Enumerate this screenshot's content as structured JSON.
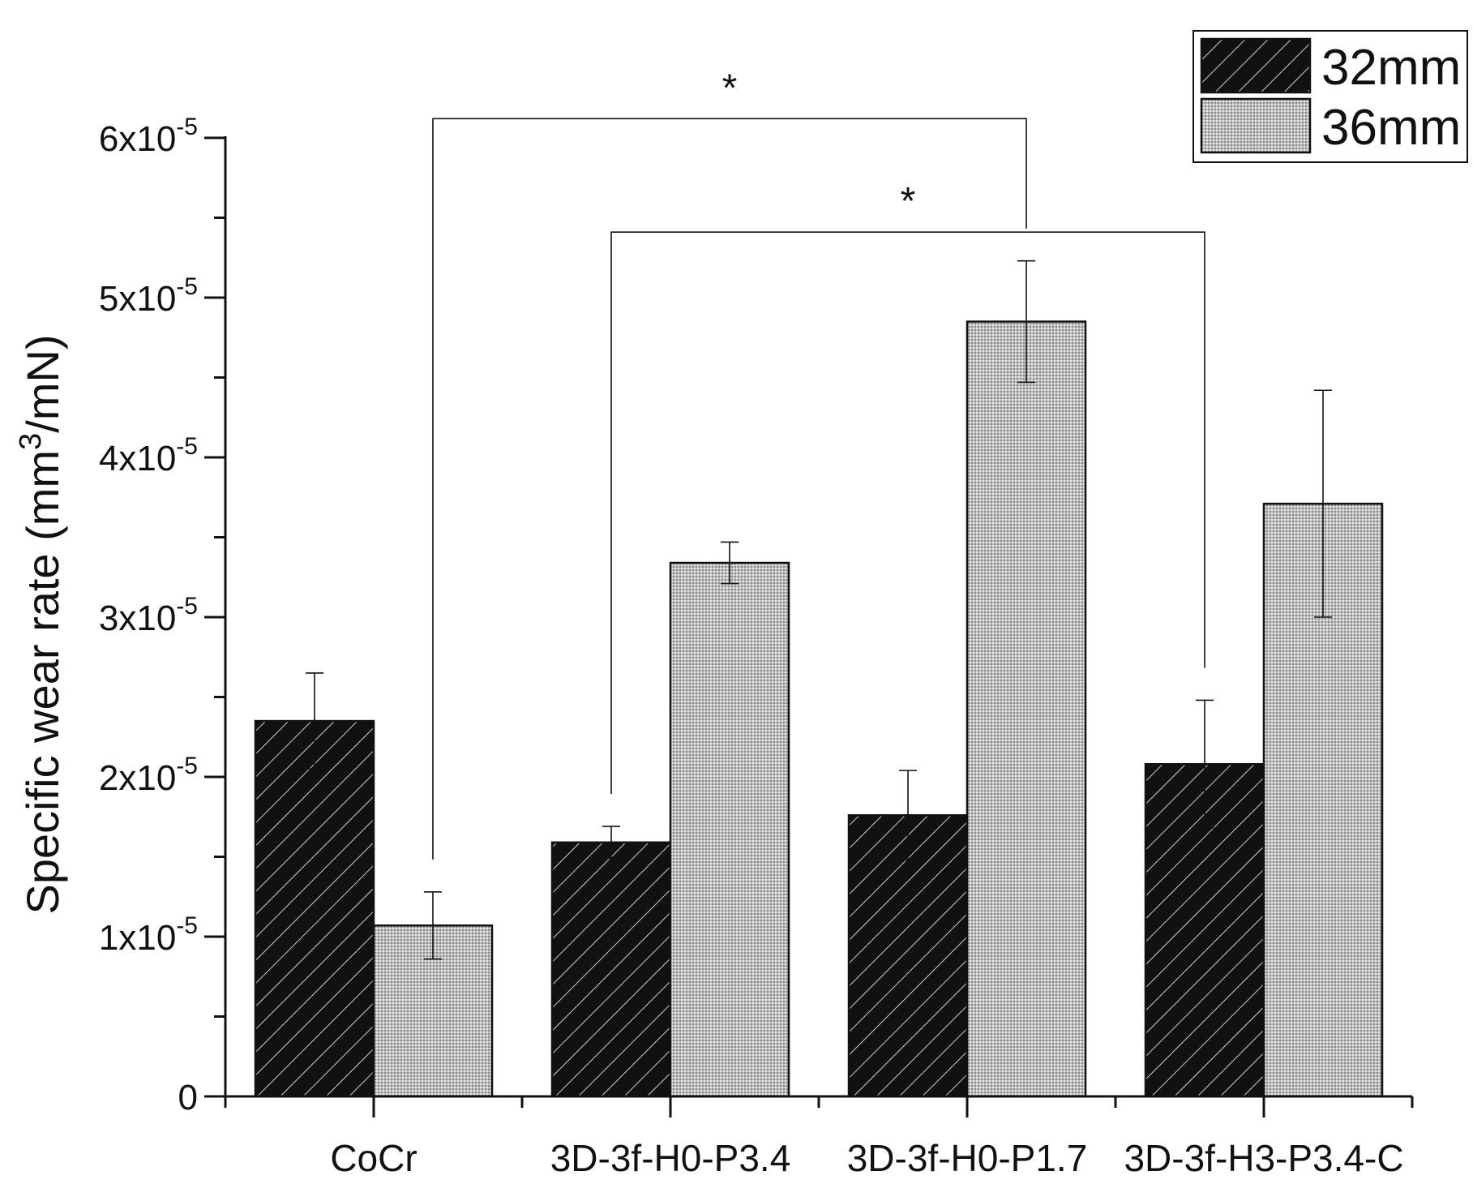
{
  "chart_data": {
    "type": "bar",
    "title": "",
    "xlabel": "",
    "ylabel": "Specific wear rate (mm³/mN)",
    "ylabel_parts": {
      "pre": "Specific wear rate (mm",
      "sup": "3",
      "post": "/mN)"
    },
    "ylim": [
      0,
      6e-05
    ],
    "yticks": [
      {
        "value": 0,
        "label": "0",
        "exp": ""
      },
      {
        "value": 1e-05,
        "label": "1x10",
        "exp": "-5"
      },
      {
        "value": 2e-05,
        "label": "2x10",
        "exp": "-5"
      },
      {
        "value": 3e-05,
        "label": "3x10",
        "exp": "-5"
      },
      {
        "value": 4e-05,
        "label": "4x10",
        "exp": "-5"
      },
      {
        "value": 5e-05,
        "label": "5x10",
        "exp": "-5"
      },
      {
        "value": 6e-05,
        "label": "6x10",
        "exp": "-5"
      }
    ],
    "categories": [
      "CoCr",
      "3D-3f-H0-P3.4",
      "3D-3f-H0-P1.7",
      "3D-3f-H3-P3.4-C"
    ],
    "series": [
      {
        "name": "32mm",
        "pattern": "hatch",
        "fill": "#111111",
        "values": [
          2.35e-05,
          1.59e-05,
          1.76e-05,
          2.08e-05
        ],
        "errors": [
          3e-06,
          1e-06,
          2.8e-06,
          4e-06
        ]
      },
      {
        "name": "36mm",
        "pattern": "dots",
        "fill": "#c8c8c8",
        "values": [
          1.07e-05,
          3.34e-05,
          4.85e-05,
          3.71e-05
        ],
        "errors": [
          2.1e-06,
          1.3e-06,
          3.8e-06,
          7.1e-06
        ]
      }
    ],
    "significance": [
      {
        "label": "*",
        "from": {
          "category": 0,
          "series": 1
        },
        "to": {
          "category": 2,
          "series": 1
        },
        "level": 6.12e-05
      },
      {
        "label": "*",
        "from": {
          "category": 1,
          "series": 0
        },
        "to": {
          "category": 3,
          "series": 0
        },
        "level": 5.41e-05
      }
    ],
    "legend": {
      "position": "top-right",
      "entries": [
        "32mm",
        "36mm"
      ]
    },
    "grid": false
  }
}
